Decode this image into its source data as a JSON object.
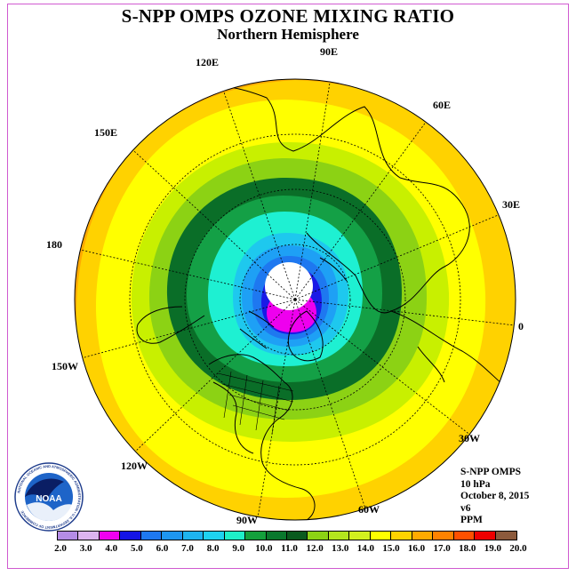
{
  "header": {
    "title": "S-NPP OMPS OZONE MIXING RATIO",
    "subtitle": "Northern Hemisphere"
  },
  "map": {
    "projection": "north-polar-stereographic",
    "longitude_labels": [
      "90E",
      "60E",
      "30E",
      "0",
      "30W",
      "60W",
      "90W",
      "120W",
      "150W",
      "180",
      "150E",
      "120E"
    ],
    "ocean_fill_note": "contoured ozone mixing ratio field",
    "field_bands_ppm": [
      {
        "range": "polar-night-no-data",
        "color": "#ffffff"
      },
      {
        "range": "4.0-5.0",
        "color": "#ee00ee"
      },
      {
        "range": "5.0-6.0",
        "color": "#1a1ae6"
      },
      {
        "range": "6.0-7.0",
        "color": "#1e78f0"
      },
      {
        "range": "7.0-8.0",
        "color": "#1ea0f5"
      },
      {
        "range": "8.0-9.0",
        "color": "#1ec8ee"
      },
      {
        "range": "9.0-10.0",
        "color": "#1ef0d2"
      },
      {
        "range": "10.0-11.0",
        "color": "#14a046"
      },
      {
        "range": "11.0-12.0",
        "color": "#0a6e28"
      },
      {
        "range": "12.0-13.0",
        "color": "#8cd214"
      },
      {
        "range": "13.0-14.0",
        "color": "#c8f000"
      },
      {
        "range": "14.0-15.0",
        "color": "#ffff00"
      },
      {
        "range": "15.0-16.0",
        "color": "#ffd200"
      },
      {
        "range": "16.0-17.0",
        "color": "#ffaa00"
      }
    ]
  },
  "info": {
    "lines": [
      "S-NPP OMPS",
      "10 hPa",
      "October 8, 2015",
      "v6",
      "PPM"
    ]
  },
  "logo": {
    "text": "NOAA",
    "ring_text": "NATIONAL OCEANIC AND ATMOSPHERIC ADMINISTRATION • U.S. DEPARTMENT OF COMMERCE"
  },
  "colorbar": {
    "colors": [
      "#b48ce6",
      "#dcb4f0",
      "#f000f0",
      "#1414e6",
      "#1e78f0",
      "#1e96f0",
      "#1eb4f0",
      "#1ed2f0",
      "#1ef0c8",
      "#14a03c",
      "#0a782d",
      "#0a5a1e",
      "#8cd214",
      "#b4e61e",
      "#d2f01e",
      "#ffff00",
      "#ffd200",
      "#ffaa00",
      "#ff8200",
      "#ff5000",
      "#ee0000",
      "#8c5a3c"
    ],
    "tick_labels": [
      "2.0",
      "3.0",
      "4.0",
      "5.0",
      "6.0",
      "7.0",
      "8.0",
      "9.0",
      "10.0",
      "11.0",
      "12.0",
      "13.0",
      "14.0",
      "15.0",
      "16.0",
      "17.0",
      "18.0",
      "19.0",
      "20.0"
    ]
  }
}
